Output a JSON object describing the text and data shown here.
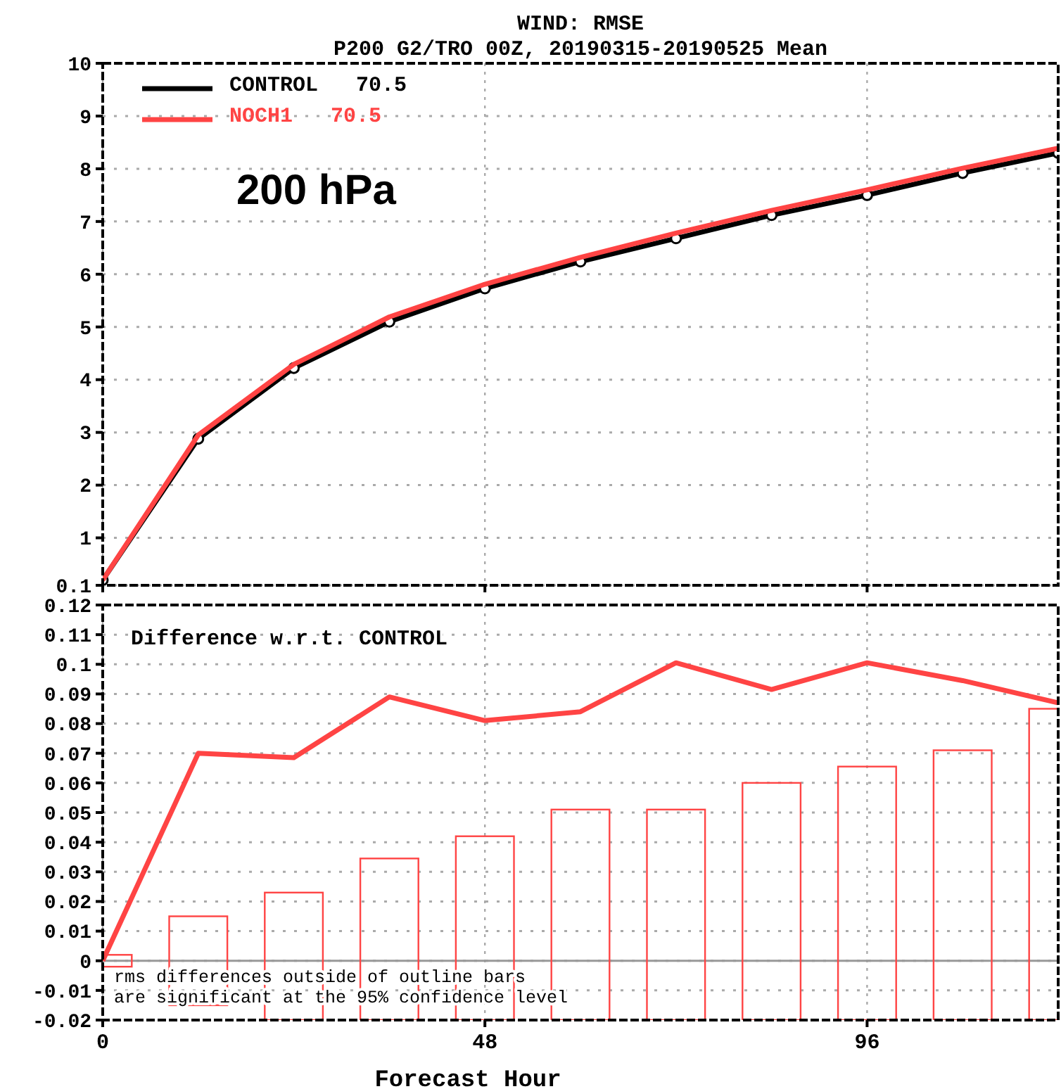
{
  "chart_data": [
    {
      "type": "line",
      "title": "WIND: RMSE",
      "subtitle": "P200 G2/TRO 00Z, 20190315-20190525 Mean",
      "x": [
        0,
        12,
        24,
        36,
        48,
        60,
        72,
        84,
        96,
        108,
        120
      ],
      "series": [
        {
          "name": "CONTROL   70.5",
          "color": "#000000",
          "marker": "circle",
          "values": [
            0.2,
            2.88,
            4.22,
            5.1,
            5.73,
            6.24,
            6.68,
            7.12,
            7.5,
            7.92,
            8.3
          ]
        },
        {
          "name": "NOCH1   70.5",
          "color": "#ff4444",
          "marker": "none",
          "values": [
            0.2,
            2.95,
            4.29,
            5.19,
            5.81,
            6.32,
            6.78,
            7.21,
            7.6,
            8.01,
            8.39
          ]
        }
      ],
      "xlim": [
        0,
        120
      ],
      "xticks": [
        0,
        48,
        96
      ],
      "ylim": [
        0.1,
        10
      ],
      "yticks": [
        0.1,
        1,
        2,
        3,
        4,
        5,
        6,
        7,
        8,
        9,
        10
      ],
      "tick_labels": "y",
      "grid": true,
      "legend": "top left",
      "annotations": [
        "200 hPa"
      ]
    },
    {
      "type": "bar",
      "x": [
        0,
        12,
        24,
        36,
        48,
        60,
        72,
        84,
        96,
        108,
        120
      ],
      "series": [
        {
          "color": "#ff4444",
          "values": [
            0.004,
            0.03,
            0.043,
            0.0545,
            0.062,
            0.071,
            0.071,
            0.08,
            0.0855,
            0.091,
            0.105
          ],
          "base": [
            -0.002,
            -0.015,
            -0.02,
            -0.02,
            -0.02,
            -0.02,
            -0.02,
            -0.02,
            -0.02,
            -0.02,
            -0.02
          ]
        },
        {
          "type": "line",
          "color": "#ff4444",
          "values": [
            0,
            0.07,
            0.0685,
            0.089,
            0.081,
            0.084,
            0.1005,
            0.0915,
            0.1005,
            0.0945,
            0.087
          ]
        }
      ],
      "xlim": [
        0,
        120
      ],
      "xticks": [
        0,
        48,
        96
      ],
      "ylim": [
        -0.02,
        0.12
      ],
      "yticks": [
        -0.02,
        -0.01,
        0,
        0.01,
        0.02,
        0.03,
        0.04,
        0.05,
        0.06,
        0.07,
        0.08,
        0.09,
        0.1,
        0.11,
        0.12
      ],
      "grid": true,
      "xlabel": "Forecast Hour",
      "ref_lines": [
        {
          "axis": "y",
          "value": 0,
          "color": "#999999"
        }
      ],
      "annotations": [
        "Difference w.r.t. CONTROL",
        "rms differences outside of outline bars\nare significant at the 95% confidence level"
      ]
    }
  ]
}
